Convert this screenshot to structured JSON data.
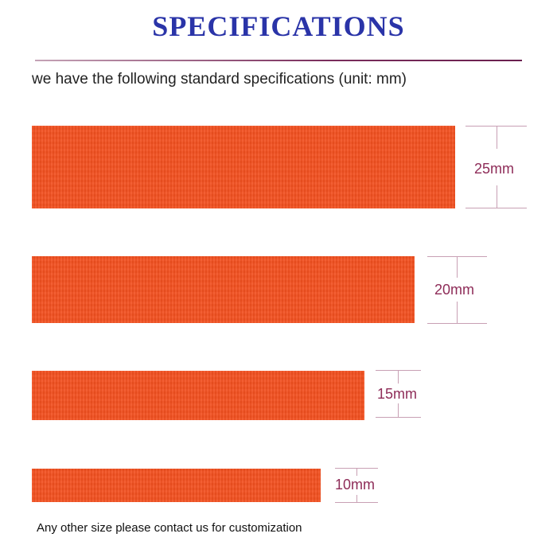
{
  "title": "SPECIFICATIONS",
  "subtitle": "we have the following standard specifications (unit: mm)",
  "straps": [
    {
      "label": "25mm",
      "width_mm": 25,
      "color": "#f2501f"
    },
    {
      "label": "20mm",
      "width_mm": 20,
      "color": "#f2501f"
    },
    {
      "label": "15mm",
      "width_mm": 15,
      "color": "#f2501f"
    },
    {
      "label": "10mm",
      "width_mm": 10,
      "color": "#f2501f"
    }
  ],
  "footer": "Any other size please contact us for customization",
  "colors": {
    "title": "#2a34a8",
    "rule": "#7a2d5c",
    "dimension_label": "#8e2c58"
  }
}
